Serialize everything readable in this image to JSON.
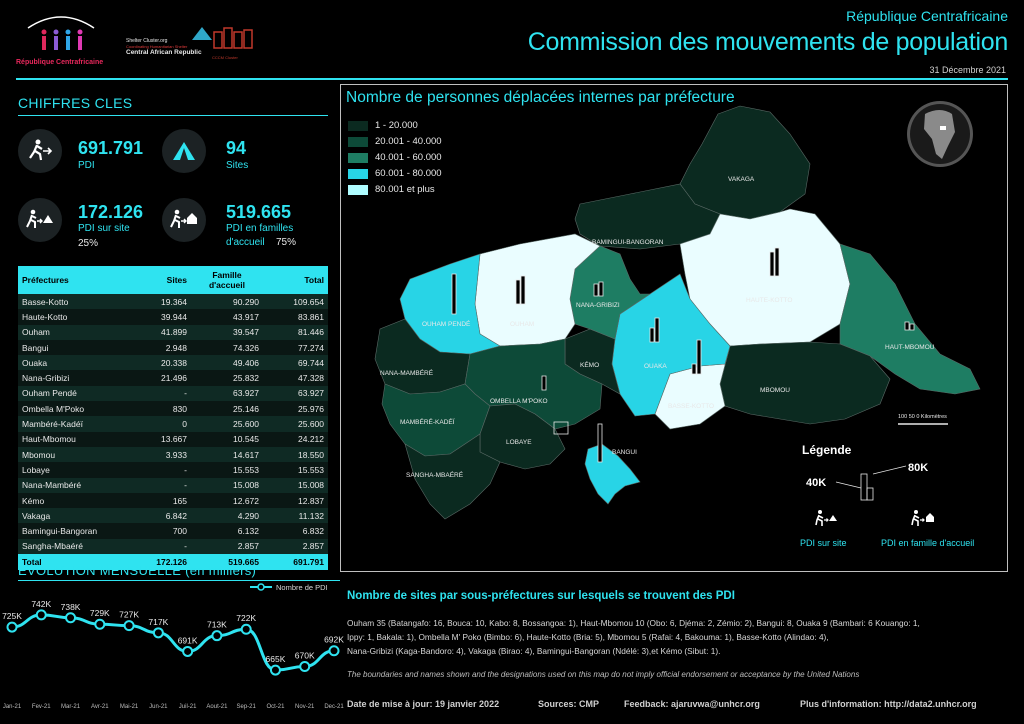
{
  "header": {
    "country": "République Centrafricaine",
    "title": "Commission des mouvements de population",
    "date": "31 Décembre 2021",
    "logo_left_text": "République Centrafricaine",
    "logo_mid_top": "Shelter Cluster.org",
    "logo_mid_sub": "Coordinating Humanitarian Shelter",
    "logo_mid_country": "Central African Republic",
    "logo_right_text": "CCCM Cluster"
  },
  "kpis": {
    "section_title": "CHIFFRES CLES",
    "pdi_value": "691.791",
    "pdi_label": "PDI",
    "sites_value": "94",
    "sites_label": "Sites",
    "onsite_value": "172.126",
    "onsite_label": "PDI sur site",
    "onsite_pct": "25%",
    "host_value": "519.665",
    "host_label": "PDI en familles",
    "host_label2": "d'accueil",
    "host_pct": "75%"
  },
  "table": {
    "headers": [
      "Préfectures",
      "Sites",
      "Famille d'accueil",
      "Total"
    ],
    "rows": [
      [
        "Basse-Kotto",
        "19.364",
        "90.290",
        "109.654"
      ],
      [
        "Haute-Kotto",
        "39.944",
        "43.917",
        "83.861"
      ],
      [
        "Ouham",
        "41.899",
        "39.547",
        "81.446"
      ],
      [
        "Bangui",
        "2.948",
        "74.326",
        "77.274"
      ],
      [
        "Ouaka",
        "20.338",
        "49.406",
        "69.744"
      ],
      [
        "Nana-Gribizi",
        "21.496",
        "25.832",
        "47.328"
      ],
      [
        "Ouham Pendé",
        "-",
        "63.927",
        "63.927"
      ],
      [
        "Ombella M'Poko",
        "830",
        "25.146",
        "25.976"
      ],
      [
        "Mambéré-Kadéï",
        "0",
        "25.600",
        "25.600"
      ],
      [
        "Haut-Mbomou",
        "13.667",
        "10.545",
        "24.212"
      ],
      [
        "Mbomou",
        "3.933",
        "14.617",
        "18.550"
      ],
      [
        "Lobaye",
        "-",
        "15.553",
        "15.553"
      ],
      [
        "Nana-Mambéré",
        "-",
        "15.008",
        "15.008"
      ],
      [
        "Kémo",
        "165",
        "12.672",
        "12.837"
      ],
      [
        "Vakaga",
        "6.842",
        "4.290",
        "11.132"
      ],
      [
        "Bamingui-Bangoran",
        "700",
        "6.132",
        "6.832"
      ],
      [
        "Sangha-Mbaéré",
        "-",
        "2.857",
        "2.857"
      ]
    ],
    "total": [
      "Total",
      "172.126",
      "519.665",
      "691.791"
    ]
  },
  "chart_data": {
    "type": "line",
    "title": "EVOLUTION MENSUELLE (en milliers)",
    "legend": "Nombre de PDI",
    "categories": [
      "Jan-21",
      "Fev-21",
      "Mar-21",
      "Avr-21",
      "Mai-21",
      "Jun-21",
      "Juil-21",
      "Aout-21",
      "Sep-21",
      "Oct-21",
      "Nov-21",
      "Dec-21"
    ],
    "series": [
      {
        "name": "Nombre de PDI",
        "values": [
          725,
          742,
          738,
          729,
          727,
          717,
          691,
          713,
          722,
          665,
          670,
          692
        ]
      }
    ],
    "data_labels": [
      "725K",
      "742K",
      "738K",
      "729K",
      "727K",
      "717K",
      "691K",
      "713K",
      "722K",
      "665K",
      "670K",
      "692K"
    ],
    "ylim": [
      640,
      760
    ],
    "color": "#2fe3f0"
  },
  "map": {
    "title": "Nombre de personnes déplacées internes par préfecture",
    "legend_items": [
      {
        "label": "1 - 20.000",
        "color": "#0b2a20"
      },
      {
        "label": "20.001 - 40.000",
        "color": "#0d4a38"
      },
      {
        "label": "40.001 - 60.000",
        "color": "#1e7d63"
      },
      {
        "label": "60.001 - 80.000",
        "color": "#28d4e6"
      },
      {
        "label": "80.001 et plus",
        "color": "#aefcff"
      }
    ],
    "prefectures": [
      {
        "name": "VAKAGA",
        "color": "#0b2a20"
      },
      {
        "name": "BAMINGUI-BANGORAN",
        "color": "#0b2a20"
      },
      {
        "name": "HAUTE-KOTTO",
        "color": "#eafdff"
      },
      {
        "name": "HAUT-MBOMOU",
        "color": "#1e7d63"
      },
      {
        "name": "MBOMOU",
        "color": "#0b2a20"
      },
      {
        "name": "BASSE-KOTTO",
        "color": "#eafdff"
      },
      {
        "name": "OUAKA",
        "color": "#28d4e6"
      },
      {
        "name": "KÉMO",
        "color": "#0b2a20"
      },
      {
        "name": "NANA-GRIBIZI",
        "color": "#1e7d63"
      },
      {
        "name": "OUHAM",
        "color": "#eafdff"
      },
      {
        "name": "OUHAM PENDÉ",
        "color": "#28d4e6"
      },
      {
        "name": "NANA-MAMBÉRÉ",
        "color": "#0b2a20"
      },
      {
        "name": "MAMBÉRÉ-KADÉÏ",
        "color": "#0d4a38"
      },
      {
        "name": "OMBELLA M'POKO",
        "color": "#0d4a38"
      },
      {
        "name": "LOBAYE",
        "color": "#0b2a20"
      },
      {
        "name": "SANGHA-MBAÉRÉ",
        "color": "#0b2a20"
      },
      {
        "name": "BANGUI",
        "color": "#28d4e6"
      }
    ],
    "scale_label": "100  50  0 Kilomètres",
    "legend_title": "Légende",
    "legend_80k": "80K",
    "legend_40k": "40K",
    "legend_site": "PDI sur site",
    "legend_host": "PDI en famille d'accueil"
  },
  "sites": {
    "title": "Nombre de sites par sous-préfectures sur lesquels se trouvent des PDI",
    "line1": "Ouham 35 (Batangafo: 16, Bouca: 10, Kabo: 8, Bossangoa: 1), Haut-Mbomou 10 (Obo: 6, Djéma: 2, Zémio: 2),  Bangui: 8, Ouaka 9 (Bambari: 6 Kouango: 1,",
    "line2": "Ippy: 1, Bakala: 1), Ombella M' Poko (Bimbo: 6), Haute-Kotto (Bria: 5), Mbomou 5 (Rafai: 4, Bakouma: 1), Basse-Kotto (Alindao: 4),",
    "line3": "Nana-Gribizi (Kaga-Bandoro: 4), Vakaga (Birao: 4), Bamingui-Bangoran (Ndélé: 3),et Kémo (Sibut: 1).",
    "disclaimer": "The boundaries and names shown and the designations used on this map do not imply official endorsement or acceptance by the United Nations"
  },
  "footer": {
    "date": "Date de mise à jour: 19 janvier 2022",
    "sources": "Sources: CMP",
    "feedback": "Feedback: ajaruvwa@unhcr.org",
    "info": "Plus d'information: http://data2.unhcr.org"
  }
}
